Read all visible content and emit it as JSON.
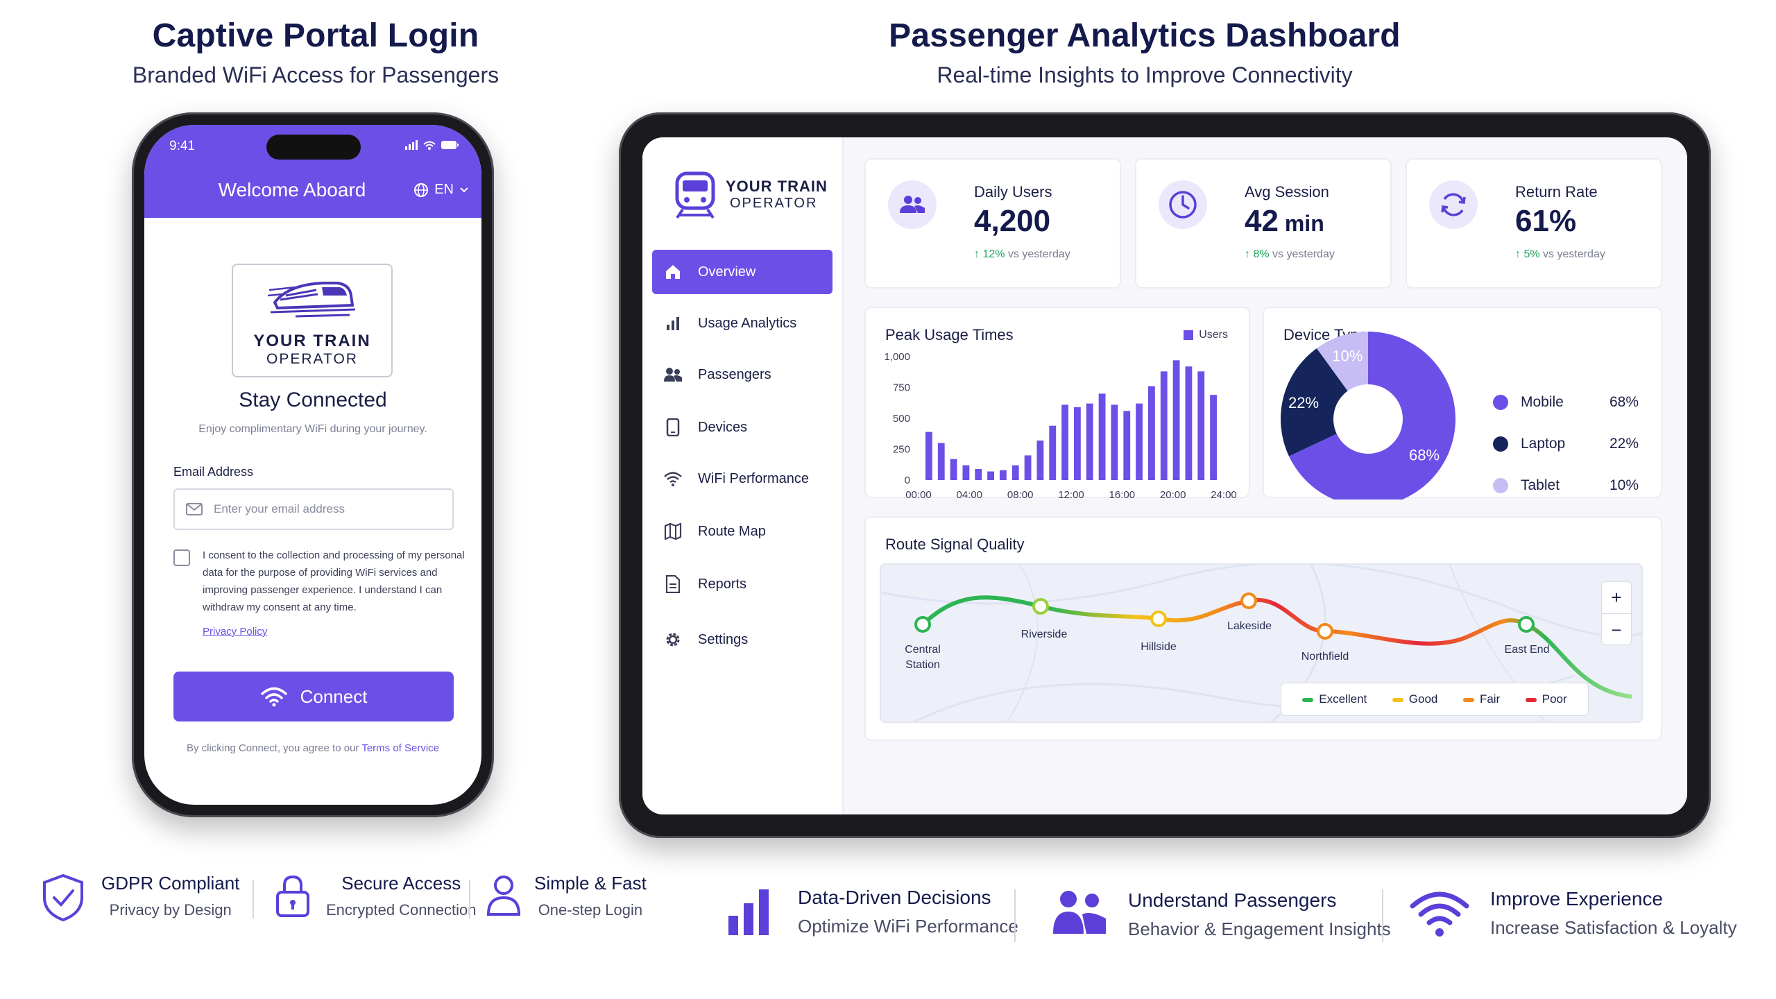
{
  "left_header": {
    "title": "Captive Portal Login",
    "subtitle": "Branded WiFi Access for Passengers"
  },
  "right_header": {
    "title": "Passenger Analytics Dashboard",
    "subtitle": "Real-time Insights to Improve Connectivity"
  },
  "phone": {
    "status_time": "9:41",
    "welcome": "Welcome Aboard",
    "language": "EN",
    "logo_line1": "YOUR TRAIN",
    "logo_line2": "OPERATOR",
    "heading": "Stay Connected",
    "tagline": "Enjoy complimentary WiFi during your journey.",
    "email_label": "Email Address",
    "email_placeholder": "Enter your email address",
    "consent_text": "I consent to the collection and processing of my personal data for the purpose of providing WiFi services and improving passenger experience. I understand I can withdraw my consent at any time.",
    "privacy_link": "Privacy Policy",
    "connect_label": "Connect",
    "terms_prefix": "By clicking Connect, you agree to our",
    "terms_link": "Terms of Service"
  },
  "dashboard": {
    "logo_line1": "YOUR TRAIN",
    "logo_line2": "OPERATOR",
    "nav": [
      {
        "label": "Overview",
        "icon": "home-icon",
        "active": true
      },
      {
        "label": "Usage Analytics",
        "icon": "bar-chart-icon"
      },
      {
        "label": "Passengers",
        "icon": "users-icon"
      },
      {
        "label": "Devices",
        "icon": "device-icon"
      },
      {
        "label": "WiFi Performance",
        "icon": "wifi-icon"
      },
      {
        "label": "Route Map",
        "icon": "map-icon"
      },
      {
        "label": "Reports",
        "icon": "report-icon"
      },
      {
        "label": "Settings",
        "icon": "gear-icon"
      }
    ],
    "stats": [
      {
        "label": "Daily Users",
        "value": "4,200",
        "unit": "",
        "delta": "12%",
        "delta_text": "vs yesterday"
      },
      {
        "label": "Avg Session",
        "value": "42",
        "unit": " min",
        "delta": "8%",
        "delta_text": "vs yesterday"
      },
      {
        "label": "Return Rate",
        "value": "61%",
        "unit": "",
        "delta": "5%",
        "delta_text": "vs yesterday"
      }
    ],
    "peak_title": "Peak Usage Times",
    "peak_legend": "Users",
    "device_title": "Device Types",
    "route_title": "Route Signal Quality",
    "stations": [
      "Central Station",
      "Riverside",
      "Hillside",
      "Lakeside",
      "Northfield",
      "East End"
    ],
    "signal_legend": [
      {
        "label": "Excellent",
        "color": "#2db553"
      },
      {
        "label": "Good",
        "color": "#f2c21b"
      },
      {
        "label": "Fair",
        "color": "#f28a1b"
      },
      {
        "label": "Poor",
        "color": "#e5283a"
      }
    ],
    "zoom_in": "+",
    "zoom_out": "−"
  },
  "chart_data": [
    {
      "type": "bar",
      "title": "Peak Usage Times",
      "series": [
        {
          "name": "Users",
          "color": "#6c4fe6",
          "values": [
            390,
            300,
            170,
            120,
            90,
            70,
            80,
            120,
            200,
            320,
            440,
            610,
            590,
            620,
            700,
            610,
            560,
            620,
            760,
            880,
            970,
            920,
            880,
            690
          ]
        }
      ],
      "x_tick_labels": [
        "00:00",
        "04:00",
        "08:00",
        "12:00",
        "16:00",
        "20:00",
        "24:00"
      ],
      "y_tick_labels": [
        "0",
        "250",
        "500",
        "750",
        "1,000"
      ],
      "ylim": [
        0,
        1000
      ]
    },
    {
      "type": "pie",
      "title": "Device Types",
      "slices": [
        {
          "label": "Mobile",
          "value": 68,
          "display": "68%",
          "color": "#6c4fe6"
        },
        {
          "label": "Laptop",
          "value": 22,
          "display": "22%",
          "color": "#15255c"
        },
        {
          "label": "Tablet",
          "value": 10,
          "display": "10%",
          "color": "#c6bdf4"
        }
      ]
    }
  ],
  "features_left": [
    {
      "title": "GDPR Compliant",
      "subtitle": "Privacy by Design",
      "icon": "shield-check-icon"
    },
    {
      "title": "Secure Access",
      "subtitle": "Encrypted Connection",
      "icon": "lock-icon"
    },
    {
      "title": "Simple & Fast",
      "subtitle": "One-step Login",
      "icon": "user-icon"
    }
  ],
  "features_right": [
    {
      "title": "Data-Driven Decisions",
      "subtitle": "Optimize WiFi Performance",
      "icon": "bar-chart-icon"
    },
    {
      "title": "Understand Passengers",
      "subtitle": "Behavior & Engagement Insights",
      "icon": "users-icon"
    },
    {
      "title": "Improve Experience",
      "subtitle": "Increase Satisfaction & Loyalty",
      "icon": "wifi-icon"
    }
  ]
}
